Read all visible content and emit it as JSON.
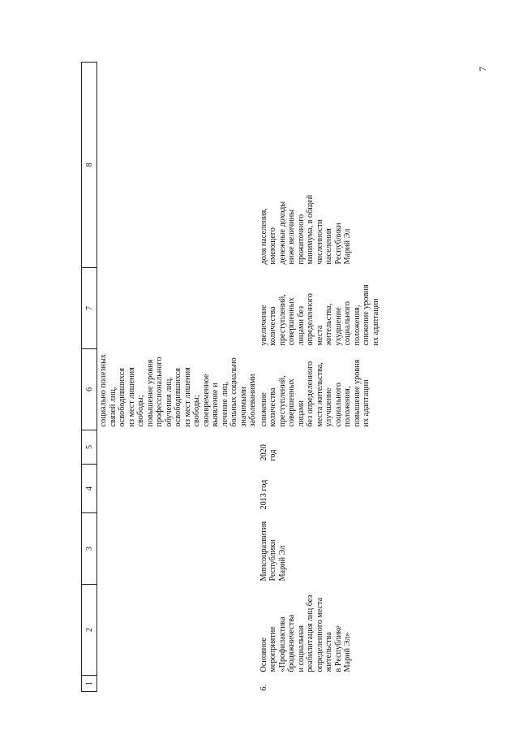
{
  "page_number": "7",
  "headers": [
    "1",
    "2",
    "3",
    "4",
    "5",
    "6",
    "7",
    "8"
  ],
  "continuation": {
    "col6": [
      "социально полезных",
      "связей лиц,",
      "освободившихся",
      "из мест лишения",
      "свободы;",
      "повышение уровня",
      "профессионального",
      "обучения лиц,",
      "освободившихся",
      "из мест лишения",
      "свободы;",
      "своевременное",
      "выявление и",
      "лечение лиц,",
      "больных социально",
      "значимыми",
      "заболеваниями"
    ]
  },
  "row": {
    "num": "6.",
    "name": [
      "Основное",
      "мероприятие",
      "«Профилактика",
      "бродяжничества",
      "и социальная",
      "реабилитация лиц без",
      "определенного места",
      "жительства",
      "в Республике",
      "Марий Эл»"
    ],
    "executor": [
      "Минсоцразвития",
      "Республики",
      "Марий Эл"
    ],
    "start": "2013 год",
    "end": "2020 год",
    "result": [
      "снижение",
      "количества",
      "преступлений,",
      "совершенных",
      "лицами",
      "без определенного",
      "места жительства,",
      "улучшение",
      "социального",
      "положения,",
      "повышение уровня",
      "их адаптации"
    ],
    "consequences": [
      "увеличение",
      "количества",
      "преступлений,",
      "совершенных",
      "лицами без",
      "определенного места",
      "жительства,",
      "ухудшение",
      "социального",
      "положения,",
      "снижение уровня",
      "их адаптации"
    ],
    "indicator": [
      "доля населения,",
      "имеющего",
      "денежные доходы",
      "ниже величины",
      "прожиточного",
      "минимума, в общей",
      "численности",
      "населения",
      "Республики",
      "Марий Эл"
    ]
  }
}
